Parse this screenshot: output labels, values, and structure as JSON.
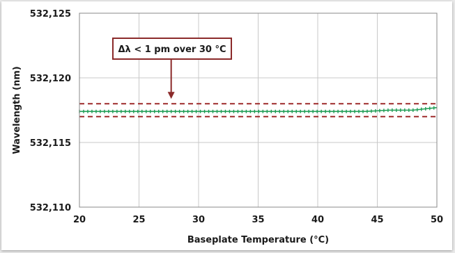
{
  "chart_data": {
    "type": "line",
    "title": "",
    "xlabel": "Baseplate Temperature (°C)",
    "ylabel": "Wavelength (nm)",
    "xlim": [
      20,
      50
    ],
    "ylim": [
      532.11,
      532.125
    ],
    "grid": true,
    "x_ticks": [
      20,
      25,
      30,
      35,
      40,
      45,
      50
    ],
    "x_tick_labels": [
      "20",
      "25",
      "30",
      "35",
      "40",
      "45",
      "50"
    ],
    "y_ticks": [
      532.11,
      532.115,
      532.12,
      532.125
    ],
    "y_tick_labels": [
      "532,110",
      "532,115",
      "532,120",
      "532,125"
    ],
    "series": [
      {
        "style": "solid-line-with-dense-markers",
        "color": "#1f9d55",
        "x": [
          20,
          22,
          24,
          26,
          28,
          30,
          32,
          34,
          36,
          38,
          40,
          42,
          44,
          46,
          48,
          49,
          50
        ],
        "y": [
          532.1174,
          532.1174,
          532.1174,
          532.1174,
          532.1174,
          532.1174,
          532.1174,
          532.1174,
          532.1174,
          532.1174,
          532.1174,
          532.1174,
          532.1174,
          532.1175,
          532.1175,
          532.1176,
          532.1177
        ]
      }
    ],
    "reference_lines": [
      {
        "y": 532.118,
        "style": "dashed",
        "color": "#9e2a2a"
      },
      {
        "y": 532.117,
        "style": "dashed",
        "color": "#9e2a2a"
      }
    ],
    "annotations": [
      {
        "text": "Δλ < 1 pm over 30 °C",
        "arrow_to": {
          "x": 27.7,
          "y": 532.118
        },
        "border_color": "#8b2a2a"
      }
    ]
  }
}
